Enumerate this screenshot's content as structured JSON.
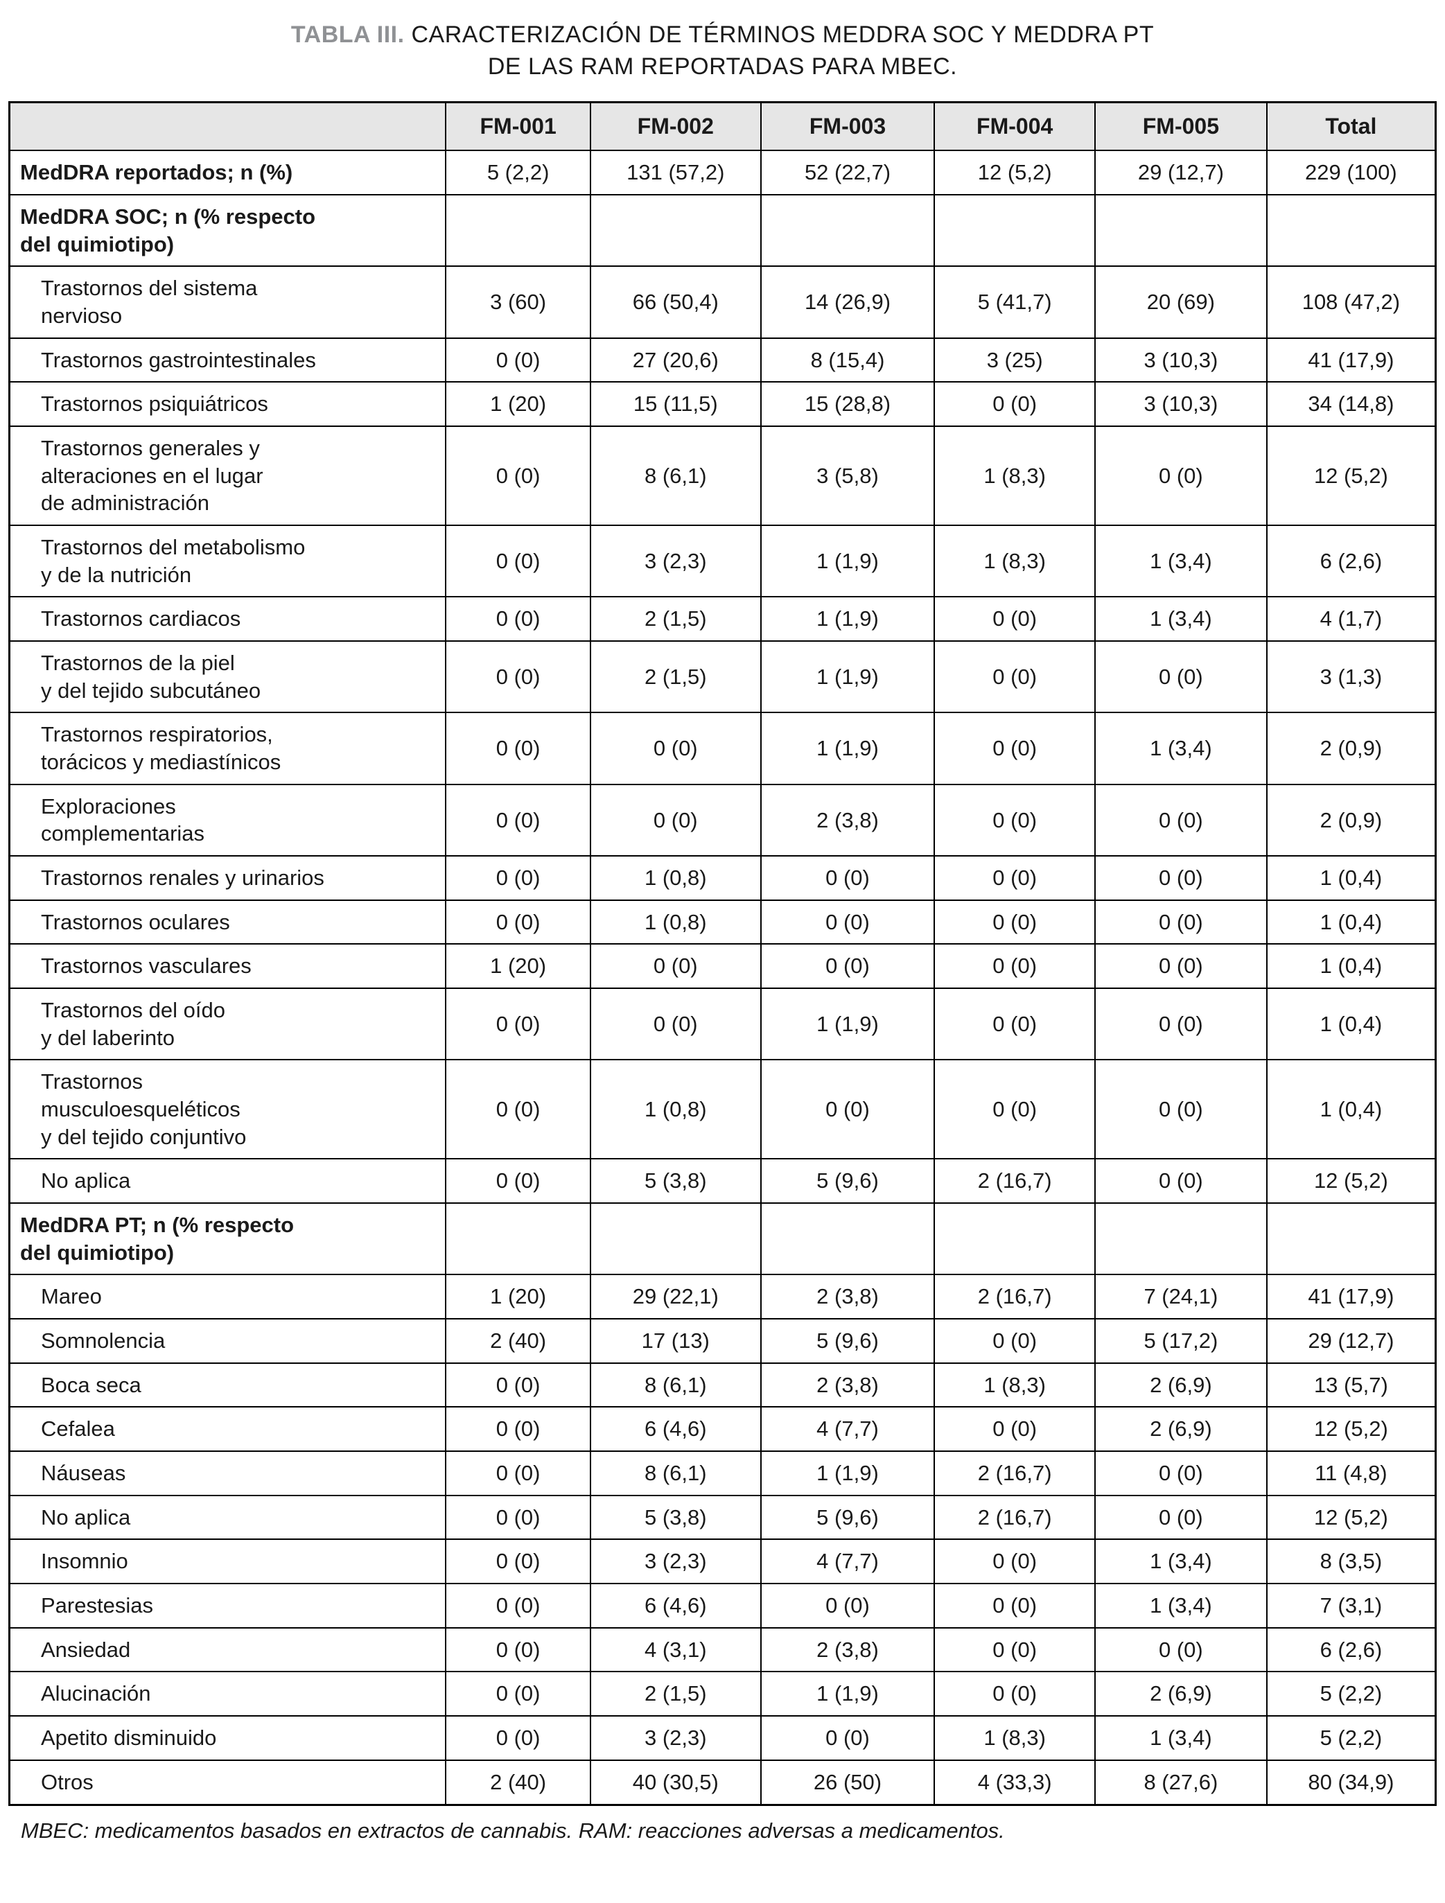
{
  "title": {
    "label": "TABLA III.",
    "line1": "CARACTERIZACIÓN DE TÉRMINOS MEDDRA SOC Y MEDDRA PT",
    "line2": "DE LAS RAM REPORTADAS PARA MBEC."
  },
  "colors": {
    "header_bg": "#e6e6e6",
    "border": "#000000",
    "title_label": "#8f9194",
    "text": "#1a1a1a"
  },
  "table": {
    "columns": [
      "",
      "FM-001",
      "FM-002",
      "FM-003",
      "FM-004",
      "FM-005",
      "Total"
    ],
    "rows": [
      {
        "label": "MedDRA reportados; n (%)",
        "style": "section",
        "values": [
          "5 (2,2)",
          "131 (57,2)",
          "52 (22,7)",
          "12 (5,2)",
          "29 (12,7)",
          "229 (100)"
        ]
      },
      {
        "label": "MedDRA SOC; n (% respecto\ndel quimiotipo)",
        "style": "section",
        "values": [
          "",
          "",
          "",
          "",
          "",
          ""
        ]
      },
      {
        "label": "Trastornos del sistema\nnervioso",
        "style": "item",
        "values": [
          "3 (60)",
          "66 (50,4)",
          "14 (26,9)",
          "5 (41,7)",
          "20 (69)",
          "108 (47,2)"
        ]
      },
      {
        "label": "Trastornos gastrointestinales",
        "style": "item",
        "values": [
          "0 (0)",
          "27 (20,6)",
          "8 (15,4)",
          "3 (25)",
          "3 (10,3)",
          "41 (17,9)"
        ]
      },
      {
        "label": "Trastornos psiquiátricos",
        "style": "item",
        "values": [
          "1 (20)",
          "15 (11,5)",
          "15 (28,8)",
          "0 (0)",
          "3 (10,3)",
          "34 (14,8)"
        ]
      },
      {
        "label": "Trastornos generales y\nalteraciones en el lugar\nde administración",
        "style": "item",
        "values": [
          "0 (0)",
          "8 (6,1)",
          "3 (5,8)",
          "1 (8,3)",
          "0 (0)",
          "12 (5,2)"
        ]
      },
      {
        "label": "Trastornos del metabolismo\ny de la nutrición",
        "style": "item",
        "values": [
          "0 (0)",
          "3 (2,3)",
          "1 (1,9)",
          "1 (8,3)",
          "1 (3,4)",
          "6 (2,6)"
        ]
      },
      {
        "label": "Trastornos cardiacos",
        "style": "item",
        "values": [
          "0 (0)",
          "2 (1,5)",
          "1 (1,9)",
          "0 (0)",
          "1 (3,4)",
          "4 (1,7)"
        ]
      },
      {
        "label": "Trastornos de la piel\ny del tejido subcutáneo",
        "style": "item",
        "values": [
          "0 (0)",
          "2 (1,5)",
          "1 (1,9)",
          "0 (0)",
          "0 (0)",
          "3 (1,3)"
        ]
      },
      {
        "label": "Trastornos respiratorios,\ntorácicos y mediastínicos",
        "style": "item",
        "values": [
          "0 (0)",
          "0 (0)",
          "1 (1,9)",
          "0 (0)",
          "1 (3,4)",
          "2 (0,9)"
        ]
      },
      {
        "label": "Exploraciones\ncomplementarias",
        "style": "item",
        "values": [
          "0 (0)",
          "0 (0)",
          "2 (3,8)",
          "0 (0)",
          "0 (0)",
          "2 (0,9)"
        ]
      },
      {
        "label": "Trastornos renales y urinarios",
        "style": "item",
        "values": [
          "0 (0)",
          "1 (0,8)",
          "0 (0)",
          "0 (0)",
          "0 (0)",
          "1 (0,4)"
        ]
      },
      {
        "label": "Trastornos oculares",
        "style": "item",
        "values": [
          "0 (0)",
          "1 (0,8)",
          "0 (0)",
          "0 (0)",
          "0 (0)",
          "1 (0,4)"
        ]
      },
      {
        "label": "Trastornos vasculares",
        "style": "item",
        "values": [
          "1 (20)",
          "0 (0)",
          "0 (0)",
          "0 (0)",
          "0 (0)",
          "1 (0,4)"
        ]
      },
      {
        "label": "Trastornos del oído\ny del laberinto",
        "style": "item",
        "values": [
          "0 (0)",
          "0 (0)",
          "1 (1,9)",
          "0 (0)",
          "0 (0)",
          "1 (0,4)"
        ]
      },
      {
        "label": "Trastornos\nmusculoesqueléticos\ny del tejido conjuntivo",
        "style": "item",
        "values": [
          "0 (0)",
          "1 (0,8)",
          "0 (0)",
          "0 (0)",
          "0 (0)",
          "1 (0,4)"
        ]
      },
      {
        "label": "No aplica",
        "style": "item",
        "values": [
          "0 (0)",
          "5 (3,8)",
          "5 (9,6)",
          "2 (16,7)",
          "0 (0)",
          "12 (5,2)"
        ]
      },
      {
        "label": "MedDRA PT; n (% respecto\ndel quimiotipo)",
        "style": "section",
        "values": [
          "",
          "",
          "",
          "",
          "",
          ""
        ]
      },
      {
        "label": "Mareo",
        "style": "item",
        "values": [
          "1 (20)",
          "29 (22,1)",
          "2 (3,8)",
          "2 (16,7)",
          "7 (24,1)",
          "41 (17,9)"
        ]
      },
      {
        "label": "Somnolencia",
        "style": "item",
        "values": [
          "2 (40)",
          "17 (13)",
          "5 (9,6)",
          "0 (0)",
          "5 (17,2)",
          "29 (12,7)"
        ]
      },
      {
        "label": "Boca seca",
        "style": "item",
        "values": [
          "0 (0)",
          "8 (6,1)",
          "2 (3,8)",
          "1 (8,3)",
          "2 (6,9)",
          "13 (5,7)"
        ]
      },
      {
        "label": "Cefalea",
        "style": "item",
        "values": [
          "0 (0)",
          "6 (4,6)",
          "4 (7,7)",
          "0 (0)",
          "2 (6,9)",
          "12 (5,2)"
        ]
      },
      {
        "label": "Náuseas",
        "style": "item",
        "values": [
          "0 (0)",
          "8 (6,1)",
          "1 (1,9)",
          "2 (16,7)",
          "0 (0)",
          "11 (4,8)"
        ]
      },
      {
        "label": "No aplica",
        "style": "item",
        "values": [
          "0 (0)",
          "5 (3,8)",
          "5 (9,6)",
          "2 (16,7)",
          "0 (0)",
          "12 (5,2)"
        ]
      },
      {
        "label": "Insomnio",
        "style": "item",
        "values": [
          "0 (0)",
          "3 (2,3)",
          "4 (7,7)",
          "0 (0)",
          "1 (3,4)",
          "8 (3,5)"
        ]
      },
      {
        "label": "Parestesias",
        "style": "item",
        "values": [
          "0 (0)",
          "6 (4,6)",
          "0 (0)",
          "0 (0)",
          "1 (3,4)",
          "7 (3,1)"
        ]
      },
      {
        "label": "Ansiedad",
        "style": "item",
        "values": [
          "0 (0)",
          "4 (3,1)",
          "2 (3,8)",
          "0 (0)",
          "0 (0)",
          "6 (2,6)"
        ]
      },
      {
        "label": "Alucinación",
        "style": "item",
        "values": [
          "0 (0)",
          "2 (1,5)",
          "1 (1,9)",
          "0 (0)",
          "2 (6,9)",
          "5 (2,2)"
        ]
      },
      {
        "label": "Apetito disminuido",
        "style": "item",
        "values": [
          "0 (0)",
          "3 (2,3)",
          "0 (0)",
          "1 (8,3)",
          "1 (3,4)",
          "5 (2,2)"
        ]
      },
      {
        "label": "Otros",
        "style": "item",
        "values": [
          "2 (40)",
          "40 (30,5)",
          "26 (50)",
          "4 (33,3)",
          "8 (27,6)",
          "80 (34,9)"
        ]
      }
    ]
  },
  "footnote": "MBEC: medicamentos basados en extractos de cannabis. RAM: reacciones adversas a medicamentos."
}
